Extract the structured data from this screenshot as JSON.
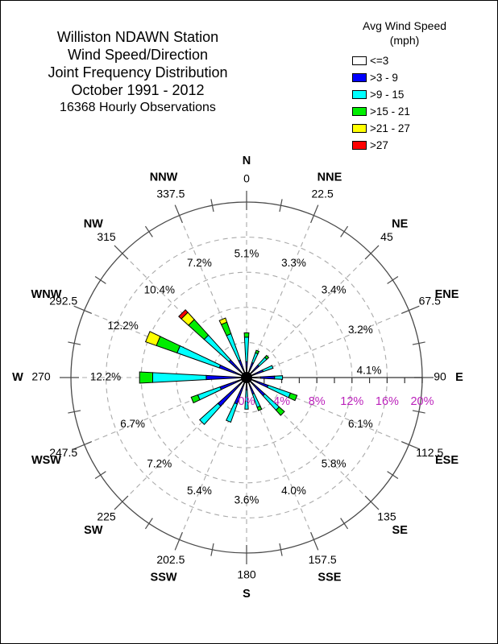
{
  "title": {
    "lines": [
      "Williston NDAWN Station",
      "Wind Speed/Direction",
      "Joint Frequency Distribution",
      "October 1991 - 2012",
      "16368 Hourly Observations"
    ]
  },
  "legend": {
    "title": "Avg Wind Speed",
    "subtitle": "(mph)",
    "items": [
      {
        "label": "<=3",
        "color": "#FFFFFF"
      },
      {
        "label": ">3 - 9",
        "color": "#0000FF"
      },
      {
        "label": ">9 - 15",
        "color": "#00FFFF"
      },
      {
        "label": ">15 - 21",
        "color": "#00EE00"
      },
      {
        "label": ">21 - 27",
        "color": "#FFFF00"
      },
      {
        "label": ">27",
        "color": "#FF0000"
      }
    ]
  },
  "chart_data": {
    "type": "bar",
    "subtype": "wind-rose-joint-frequency",
    "title": "Wind Speed/Direction Joint Frequency Distribution",
    "observations": "16368 Hourly Observations",
    "speed_bins": [
      "<=3",
      ">3 - 9",
      ">9 - 15",
      ">15 - 21",
      ">21 - 27",
      ">27"
    ],
    "bin_colors": [
      "#FFFFFF",
      "#0000FF",
      "#00FFFF",
      "#00EE00",
      "#FFFF00",
      "#FF0000"
    ],
    "directions": [
      {
        "name": "N",
        "degrees": "0",
        "total": 5.1,
        "total_label": "5.1%",
        "values": [
          0,
          1.8,
          2.8,
          0.5,
          0,
          0
        ]
      },
      {
        "name": "NNE",
        "degrees": "22.5",
        "total": 3.3,
        "total_label": "3.3%",
        "values": [
          0,
          1.8,
          1.2,
          0.3,
          0,
          0
        ]
      },
      {
        "name": "NE",
        "degrees": "45",
        "total": 3.4,
        "total_label": "3.4%",
        "values": [
          0,
          1.9,
          1.2,
          0.3,
          0,
          0
        ]
      },
      {
        "name": "ENE",
        "degrees": "67.5",
        "total": 3.2,
        "total_label": "3.2%",
        "values": [
          0,
          2.0,
          1.2,
          0,
          0,
          0
        ]
      },
      {
        "name": "E",
        "degrees": "90",
        "total": 4.1,
        "total_label": "4.1%",
        "values": [
          1.6,
          1.6,
          0.9,
          0,
          0,
          0
        ]
      },
      {
        "name": "ESE",
        "degrees": "112.5",
        "total": 6.1,
        "total_label": "6.1%",
        "values": [
          0,
          2.6,
          2.7,
          0.8,
          0,
          0
        ]
      },
      {
        "name": "SE",
        "degrees": "135",
        "total": 5.8,
        "total_label": "5.8%",
        "values": [
          0,
          2.8,
          2.2,
          0.8,
          0,
          0
        ]
      },
      {
        "name": "SSE",
        "degrees": "157.5",
        "total": 4.0,
        "total_label": "4.0%",
        "values": [
          0,
          2.0,
          1.6,
          0.4,
          0,
          0
        ]
      },
      {
        "name": "S",
        "degrees": "180",
        "total": 3.6,
        "total_label": "3.6%",
        "values": [
          0,
          1.4,
          2.2,
          0,
          0,
          0
        ]
      },
      {
        "name": "SSW",
        "degrees": "202.5",
        "total": 5.4,
        "total_label": "5.4%",
        "values": [
          0,
          3.2,
          2.2,
          0,
          0,
          0
        ]
      },
      {
        "name": "SW",
        "degrees": "225",
        "total": 7.2,
        "total_label": "7.2%",
        "values": [
          0,
          4.4,
          2.8,
          0,
          0,
          0
        ]
      },
      {
        "name": "WSW",
        "degrees": "247.5",
        "total": 6.7,
        "total_label": "6.7%",
        "values": [
          0,
          3.2,
          2.7,
          0.8,
          0,
          0
        ]
      },
      {
        "name": "W",
        "degrees": "270",
        "total": 12.2,
        "total_label": "12.2%",
        "values": [
          0,
          4.6,
          6.1,
          1.5,
          0,
          0
        ]
      },
      {
        "name": "WNW",
        "degrees": "292.5",
        "total": 12.2,
        "total_label": "12.2%",
        "values": [
          0,
          3.3,
          5.1,
          2.5,
          1.3,
          0
        ]
      },
      {
        "name": "NW",
        "degrees": "315",
        "total": 10.4,
        "total_label": "10.4%",
        "values": [
          0,
          2.7,
          3.8,
          2.4,
          1.1,
          0.4
        ]
      },
      {
        "name": "NNW",
        "degrees": "337.5",
        "total": 7.2,
        "total_label": "7.2%",
        "values": [
          0,
          2.1,
          3.2,
          1.4,
          0.5,
          0
        ]
      }
    ],
    "radial_axis": {
      "tick_labels": [
        "0%",
        "4%",
        "8%",
        "12%",
        "16%",
        "20%"
      ],
      "tick_values": [
        0,
        4,
        8,
        12,
        16,
        20
      ],
      "max": 20,
      "grid_interval": 4,
      "label_color": "#BB22BB"
    }
  }
}
